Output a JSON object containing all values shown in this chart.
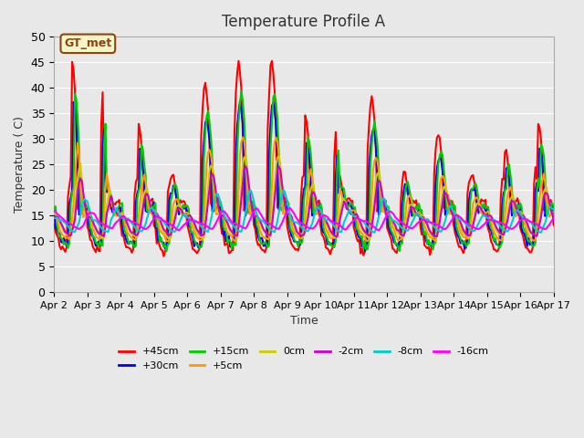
{
  "title": "Temperature Profile A",
  "xlabel": "Time",
  "ylabel": "Temperature ( C)",
  "ylim": [
    0,
    50
  ],
  "xlim": [
    0,
    360
  ],
  "bg_color": "#e8e8e8",
  "plot_bg_color": "#e8e8e8",
  "annotation_text": "GT_met",
  "annotation_color": "#8B4513",
  "annotation_bg": "#f5f5c8",
  "annotation_border": "#8B4513",
  "series": {
    "+45cm": {
      "color": "#ff0000",
      "lw": 1.5
    },
    "+30cm": {
      "color": "#0000ff",
      "lw": 1.5
    },
    "+15cm": {
      "color": "#00cc00",
      "lw": 1.5
    },
    "+5cm": {
      "color": "#ff9900",
      "lw": 1.5
    },
    "0cm": {
      "color": "#cccc00",
      "lw": 1.5
    },
    "-2cm": {
      "color": "#cc00cc",
      "lw": 1.5
    },
    "-8cm": {
      "color": "#00cccc",
      "lw": 1.5
    },
    "-16cm": {
      "color": "#ff00ff",
      "lw": 1.5
    }
  },
  "xtick_labels": [
    "Apr 2",
    "Apr 3",
    "Apr 4",
    "Apr 5",
    "Apr 6",
    "Apr 7",
    "Apr 8",
    "Apr 9",
    "Apr 10",
    "Apr 11",
    "Apr 12",
    "Apr 13",
    "Apr 14",
    "Apr 15",
    "Apr 16",
    "Apr 17"
  ],
  "xtick_positions": [
    0,
    24,
    48,
    72,
    96,
    120,
    144,
    168,
    192,
    216,
    240,
    264,
    288,
    312,
    336,
    360
  ],
  "ytick_labels": [
    "0",
    "5",
    "10",
    "15",
    "20",
    "25",
    "30",
    "35",
    "40",
    "45",
    "50"
  ],
  "ytick_positions": [
    0,
    5,
    10,
    15,
    20,
    25,
    30,
    35,
    40,
    45,
    50
  ]
}
